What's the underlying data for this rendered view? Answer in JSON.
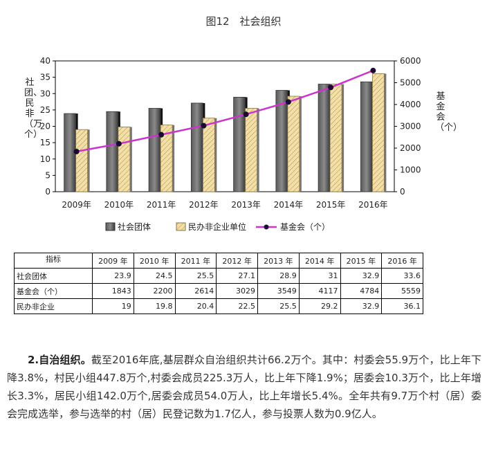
{
  "figure_title": "图12　社会组织",
  "left_axis_label": "社团、民非（万个）",
  "right_axis_label": "基金会（个）",
  "chart_data": {
    "type": "bar",
    "categories": [
      "2009年",
      "2010年",
      "2011年",
      "2012年",
      "2013年",
      "2014年",
      "2015年",
      "2016年"
    ],
    "series": [
      {
        "name": "社会团体",
        "kind": "bar",
        "axis": "left",
        "values": [
          23.9,
          24.5,
          25.5,
          27.1,
          28.9,
          31,
          32.9,
          33.6
        ],
        "color": "#3a3a3a"
      },
      {
        "name": "民办非企业单位",
        "kind": "bar",
        "axis": "left",
        "values": [
          19,
          19.8,
          20.4,
          22.5,
          25.5,
          29.2,
          32.9,
          36.1
        ],
        "color": "#f3dfa8"
      },
      {
        "name": "基金会（个）",
        "kind": "line",
        "axis": "right",
        "values": [
          1843,
          2200,
          2614,
          3029,
          3549,
          4117,
          4784,
          5559
        ],
        "color": "#cc33cc"
      }
    ],
    "ylim": [
      0,
      40
    ],
    "y_ticks": [
      "0",
      "5",
      "10",
      "15",
      "20",
      "25",
      "30",
      "35",
      "40"
    ],
    "y2lim": [
      0,
      6000
    ],
    "y2_ticks": [
      "0",
      "1000",
      "2000",
      "3000",
      "4000",
      "5000",
      "6000"
    ],
    "legend_position": "bottom"
  },
  "table": {
    "header": [
      "指标",
      "2009 年",
      "2010 年",
      "2011 年",
      "2012 年",
      "2013 年",
      "2014 年",
      "2015 年",
      "2016 年"
    ],
    "rows": [
      [
        "社会团体",
        "23.9",
        "24.5",
        "25.5",
        "27.1",
        "28.9",
        "31",
        "32.9",
        "33.6"
      ],
      [
        "基金会（个）",
        "1843",
        "2200",
        "2614",
        "3029",
        "3549",
        "4117",
        "4784",
        "5559"
      ],
      [
        "民办非企业",
        "19",
        "19.8",
        "20.4",
        "22.5",
        "25.5",
        "29.2",
        "32.9",
        "36.1"
      ]
    ]
  },
  "paragraph": {
    "heading": "2.自治组织。",
    "body": "截至2016年底,基层群众自治组织共计66.2万个。其中：村委会55.9万个，比上年下降3.8%，村民小组447.8万个,村委会成员225.3万人，比上年下降1.9%；居委会10.3万个，比上年增长3.3%，居民小组142.0万个,居委会成员54.0万人，比上年增长5.4%。全年共有9.7万个村（居）委会完成选举，参与选举的村（居）民登记数为1.7亿人，参与投票人数为0.9亿人。"
  }
}
